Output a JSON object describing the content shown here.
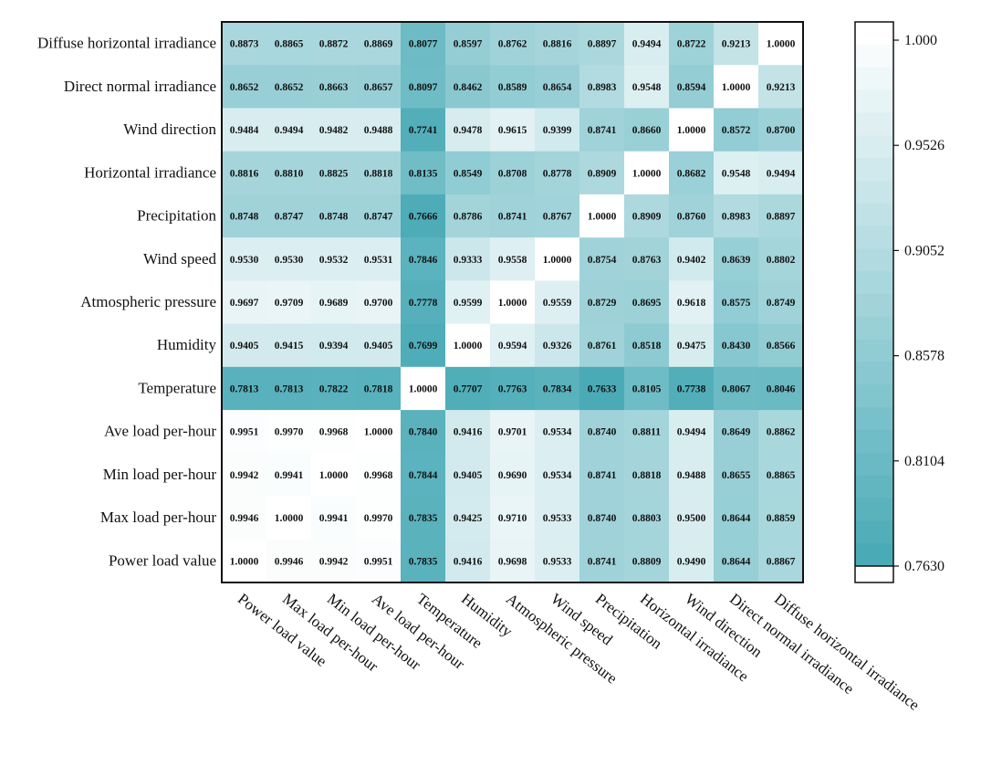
{
  "chart_data": {
    "type": "heatmap",
    "title": "",
    "rows": [
      "Diffuse  horizontal irradiance",
      "Direct normal irradiance",
      "Wind direction",
      "Horizontal irradiance",
      "Precipitation",
      "Wind speed",
      "Atmospheric pressure",
      "Humidity",
      "Temperature",
      "Ave load per-hour",
      "Min load per-hour",
      "Max load per-hour",
      "Power load value"
    ],
    "columns": [
      "Power load value",
      "Max load per-hour",
      "Min load per-hour",
      "Ave load per-hour",
      "Temperature",
      "Humidity",
      "Atmospheric pressure",
      "Wind speed",
      "Precipitation",
      "Horizontal irradiance",
      "Wind direction",
      "Direct normal irradiance",
      "Diffuse horizontal irradiance"
    ],
    "values": [
      [
        "0.8873",
        "0.8865",
        "0.8872",
        "0.8869",
        "0.8077",
        "0.8597",
        "0.8762",
        "0.8816",
        "0.8897",
        "0.9494",
        "0.8722",
        "0.9213",
        "1.0000"
      ],
      [
        "0.8652",
        "0.8652",
        "0.8663",
        "0.8657",
        "0.8097",
        "0.8462",
        "0.8589",
        "0.8654",
        "0.8983",
        "0.9548",
        "0.8594",
        "1.0000",
        "0.9213"
      ],
      [
        "0.9484",
        "0.9494",
        "0.9482",
        "0.9488",
        "0.7741",
        "0.9478",
        "0.9615",
        "0.9399",
        "0.8741",
        "0.8660",
        "1.0000",
        "0.8572",
        "0.8700"
      ],
      [
        "0.8816",
        "0.8810",
        "0.8825",
        "0.8818",
        "0.8135",
        "0.8549",
        "0.8708",
        "0.8778",
        "0.8909",
        "1.0000",
        "0.8682",
        "0.9548",
        "0.9494"
      ],
      [
        "0.8748",
        "0.8747",
        "0.8748",
        "0.8747",
        "0.7666",
        "0.8786",
        "0.8741",
        "0.8767",
        "1.0000",
        "0.8909",
        "0.8760",
        "0.8983",
        "0.8897"
      ],
      [
        "0.9530",
        "0.9530",
        "0.9532",
        "0.9531",
        "0.7846",
        "0.9333",
        "0.9558",
        "1.0000",
        "0.8754",
        "0.8763",
        "0.9402",
        "0.8639",
        "0.8802"
      ],
      [
        "0.9697",
        "0.9709",
        "0.9689",
        "0.9700",
        "0.7778",
        "0.9599",
        "1.0000",
        "0.9559",
        "0.8729",
        "0.8695",
        "0.9618",
        "0.8575",
        "0.8749"
      ],
      [
        "0.9405",
        "0.9415",
        "0.9394",
        "0.9405",
        "0.7699",
        "1.0000",
        "0.9594",
        "0.9326",
        "0.8761",
        "0.8518",
        "0.9475",
        "0.8430",
        "0.8566"
      ],
      [
        "0.7813",
        "0.7813",
        "0.7822",
        "0.7818",
        "1.0000",
        "0.7707",
        "0.7763",
        "0.7834",
        "0.7633",
        "0.8105",
        "0.7738",
        "0.8067",
        "0.8046"
      ],
      [
        "0.9951",
        "0.9970",
        "0.9968",
        "1.0000",
        "0.7840",
        "0.9416",
        "0.9701",
        "0.9534",
        "0.8740",
        "0.8811",
        "0.9494",
        "0.8649",
        "0.8862"
      ],
      [
        "0.9942",
        "0.9941",
        "1.0000",
        "0.9968",
        "0.7844",
        "0.9405",
        "0.9690",
        "0.9534",
        "0.8741",
        "0.8818",
        "0.9488",
        "0.8655",
        "0.8865"
      ],
      [
        "0.9946",
        "1.0000",
        "0.9941",
        "0.9970",
        "0.7835",
        "0.9425",
        "0.9710",
        "0.9533",
        "0.8740",
        "0.8803",
        "0.9500",
        "0.8644",
        "0.8859"
      ],
      [
        "1.0000",
        "0.9946",
        "0.9942",
        "0.9951",
        "0.7835",
        "0.9416",
        "0.9698",
        "0.9533",
        "0.8741",
        "0.8809",
        "0.9490",
        "0.8644",
        "0.8867"
      ]
    ],
    "colorbar": {
      "range": [
        0.763,
        1.0
      ],
      "ticks": [
        "1.000",
        "0.9526",
        "0.9052",
        "0.8578",
        "0.8104",
        "0.7630"
      ]
    },
    "colors": {
      "low": "#4aabb7",
      "high": "#ffffff"
    }
  }
}
